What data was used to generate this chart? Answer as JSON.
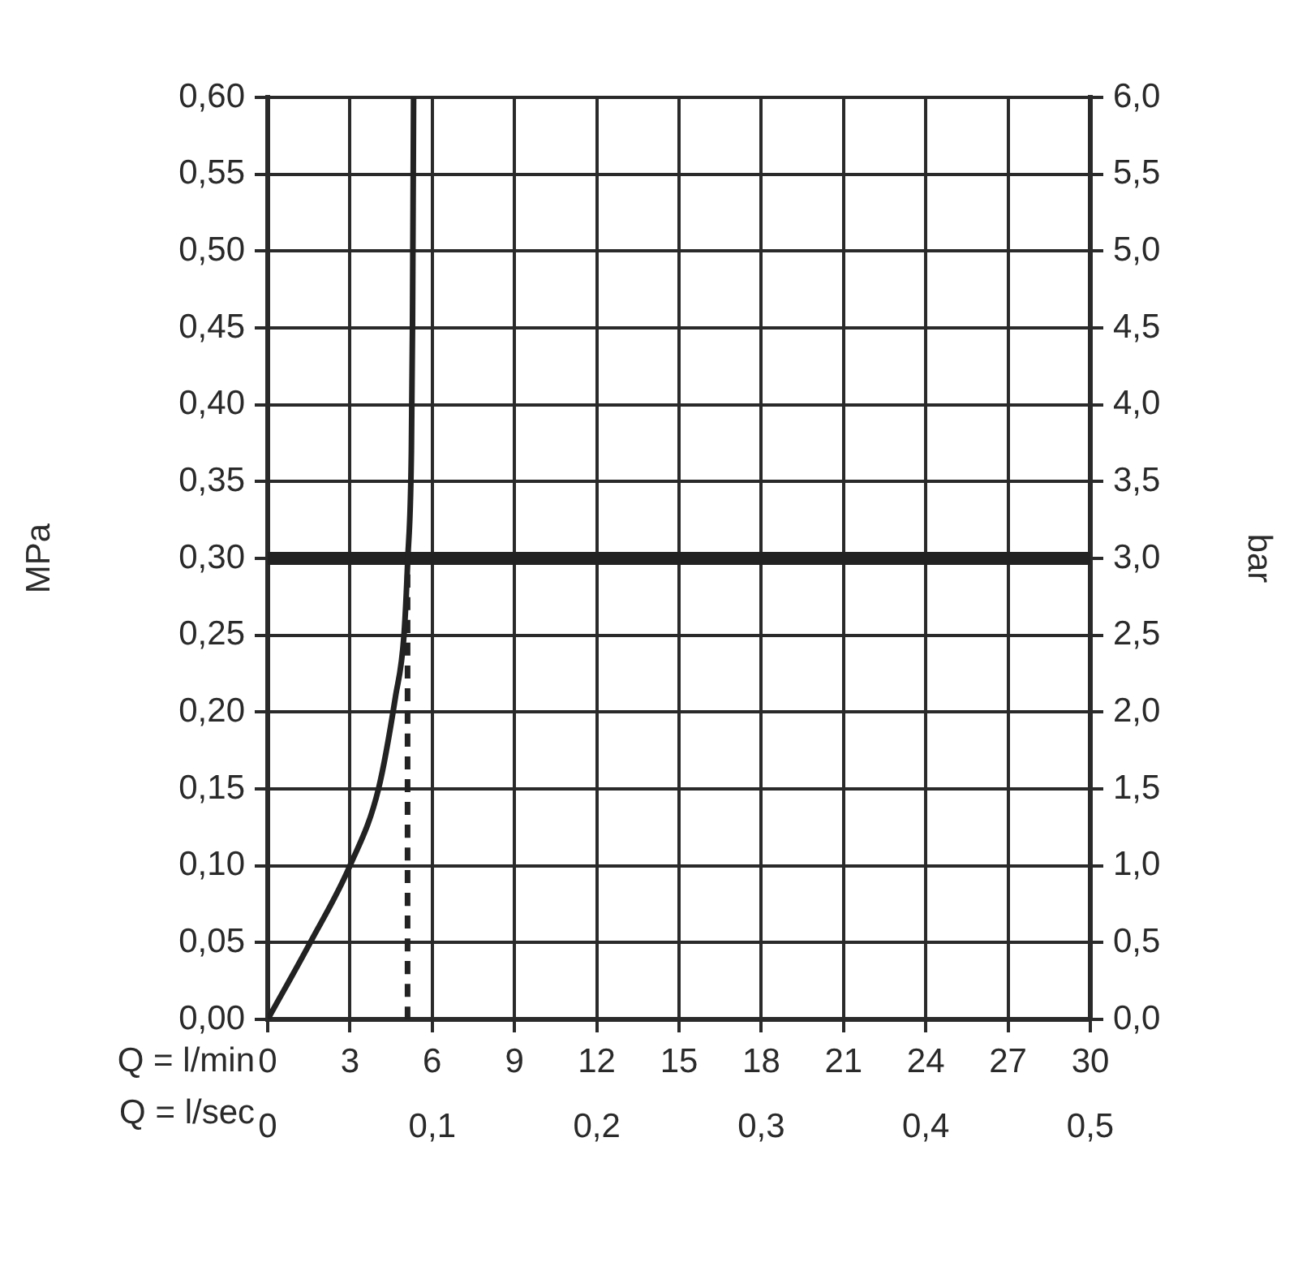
{
  "chart_data": {
    "type": "line",
    "xlabel": "Q = l/min",
    "x2label": "Q = l/sec",
    "ylabel": "MPa",
    "y2label": "bar",
    "xlim": [
      0,
      30
    ],
    "xticks": [
      0,
      3,
      6,
      9,
      12,
      15,
      18,
      21,
      24,
      27,
      30
    ],
    "x2lim": [
      0,
      0.5
    ],
    "x2ticks": [
      {
        "value": 0,
        "label": "0"
      },
      {
        "value": 0.1,
        "label": "0,1"
      },
      {
        "value": 0.2,
        "label": "0,2"
      },
      {
        "value": 0.3,
        "label": "0,3"
      },
      {
        "value": 0.4,
        "label": "0,4"
      },
      {
        "value": 0.5,
        "label": "0,5"
      }
    ],
    "ylim": [
      0,
      0.6
    ],
    "yticks": [
      {
        "value": 0,
        "label": "0,00"
      },
      {
        "value": 0.05,
        "label": "0,05"
      },
      {
        "value": 0.1,
        "label": "0,10"
      },
      {
        "value": 0.15,
        "label": "0,15"
      },
      {
        "value": 0.2,
        "label": "0,20"
      },
      {
        "value": 0.25,
        "label": "0,25"
      },
      {
        "value": 0.3,
        "label": "0,30"
      },
      {
        "value": 0.35,
        "label": "0,35"
      },
      {
        "value": 0.4,
        "label": "0,40"
      },
      {
        "value": 0.45,
        "label": "0,45"
      },
      {
        "value": 0.5,
        "label": "0,50"
      },
      {
        "value": 0.55,
        "label": "0,55"
      },
      {
        "value": 0.6,
        "label": "0,60"
      }
    ],
    "y2lim": [
      0,
      6
    ],
    "y2ticks": [
      {
        "value": 0,
        "label": "0,0"
      },
      {
        "value": 0.5,
        "label": "0,5"
      },
      {
        "value": 1,
        "label": "1,0"
      },
      {
        "value": 1.5,
        "label": "1,5"
      },
      {
        "value": 2,
        "label": "2,0"
      },
      {
        "value": 2.5,
        "label": "2,5"
      },
      {
        "value": 3,
        "label": "3,0"
      },
      {
        "value": 3.5,
        "label": "3,5"
      },
      {
        "value": 4,
        "label": "4,0"
      },
      {
        "value": 4.5,
        "label": "4,5"
      },
      {
        "value": 5,
        "label": "5,0"
      },
      {
        "value": 5.5,
        "label": "5,5"
      },
      {
        "value": 6,
        "label": "6,0"
      }
    ],
    "series": [
      {
        "color": "#222222",
        "x": [
          0,
          1.55,
          3,
          4.04,
          4.66,
          4.97,
          5.11,
          5.24,
          5.28,
          5.32
        ],
        "values": [
          0,
          0.05,
          0.1,
          0.15,
          0.21,
          0.25,
          0.3,
          0.37,
          0.45,
          0.6
        ]
      },
      {
        "color": "#222222",
        "line_style": "dashed",
        "x": [
          5.1,
          5.1
        ],
        "values": [
          0,
          0.3
        ]
      }
    ],
    "ref_lines": [
      {
        "axis": "y",
        "value": 0.3,
        "color": "#222222"
      }
    ],
    "grid": true,
    "legend": false,
    "marker": "none",
    "line_style": "solid"
  }
}
